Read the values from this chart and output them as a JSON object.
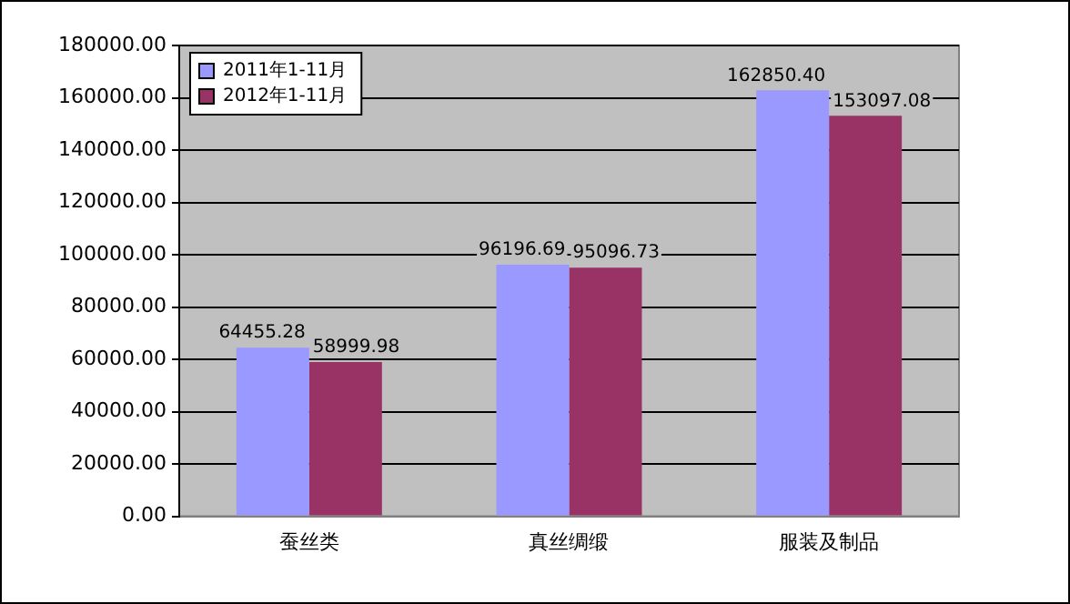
{
  "chart_data": {
    "type": "bar",
    "categories": [
      "蚕丝类",
      "真丝绸缎",
      "服装及制品"
    ],
    "series": [
      {
        "name": "2011年1-11月",
        "color": "#9999ff",
        "values": [
          64455.28,
          96196.69,
          162850.4
        ],
        "value_labels": [
          "64455.28",
          "96196.69",
          "162850.40"
        ]
      },
      {
        "name": "2012年1-11月",
        "color": "#993366",
        "values": [
          58999.98,
          95096.73,
          153097.08
        ],
        "value_labels": [
          "58999.98",
          "95096.73",
          "153097.08"
        ]
      }
    ],
    "ylim": [
      0,
      180000
    ],
    "yticks": [
      {
        "value": 0,
        "label": "0.00"
      },
      {
        "value": 20000,
        "label": "20000.00"
      },
      {
        "value": 40000,
        "label": "40000.00"
      },
      {
        "value": 60000,
        "label": "60000.00"
      },
      {
        "value": 80000,
        "label": "80000.00"
      },
      {
        "value": 100000,
        "label": "100000.00"
      },
      {
        "value": 120000,
        "label": "120000.00"
      },
      {
        "value": 140000,
        "label": "140000.00"
      },
      {
        "value": 160000,
        "label": "160000.00"
      },
      {
        "value": 180000,
        "label": "180000.00"
      }
    ],
    "grid": "y",
    "legend": "top left"
  }
}
